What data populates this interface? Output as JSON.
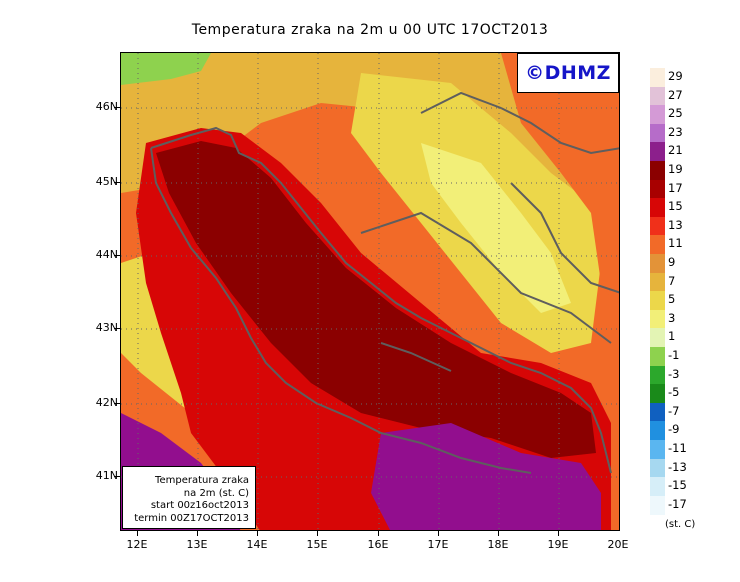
{
  "title": "Temperatura zraka na 2m u 00 UTC 17OCT2013",
  "logo_text": "©DHMZ",
  "info_box": {
    "line1": "Temperatura zraka",
    "line2": "na 2m (st. C)",
    "line3": "start 00z16oct2013",
    "line4": "termin 00Z17OCT2013"
  },
  "axes": {
    "lat_labels": [
      "46N",
      "45N",
      "44N",
      "43N",
      "42N",
      "41N"
    ],
    "lon_labels": [
      "12E",
      "13E",
      "14E",
      "15E",
      "16E",
      "17E",
      "18E",
      "19E",
      "20E"
    ]
  },
  "legend": {
    "unit": "(st. C)",
    "labels": [
      "29",
      "27",
      "25",
      "23",
      "21",
      "19",
      "17",
      "15",
      "13",
      "11",
      "9",
      "7",
      "5",
      "3",
      "1",
      "-1",
      "-3",
      "-5",
      "-7",
      "-9",
      "-11",
      "-13",
      "-15",
      "-17"
    ],
    "colors": [
      "#fbeedd",
      "#e2c2d8",
      "#d49ad6",
      "#b66cc9",
      "#8c1f8c",
      "#8b0000",
      "#a80000",
      "#d70606",
      "#f0301a",
      "#f26a28",
      "#e39338",
      "#e6b43c",
      "#ecd74a",
      "#f2ef78",
      "#e3f4b4",
      "#8ed24e",
      "#2ca82c",
      "#1a8a1a",
      "#1060c0",
      "#2090e0",
      "#5ab6f0",
      "#a6d8f0",
      "#d6eef8",
      "#eef8fc"
    ]
  },
  "map_colors": {
    "sea_core": "#8b0000",
    "sea_deep": "#920e8e",
    "coast_warm": "#d70606",
    "lowland": "#f26a28",
    "hills": "#e6b43c",
    "upland": "#ecd74a",
    "mountain": "#f2ef78",
    "cold": "#8ed24e",
    "coastline": "#5e5e5e"
  }
}
